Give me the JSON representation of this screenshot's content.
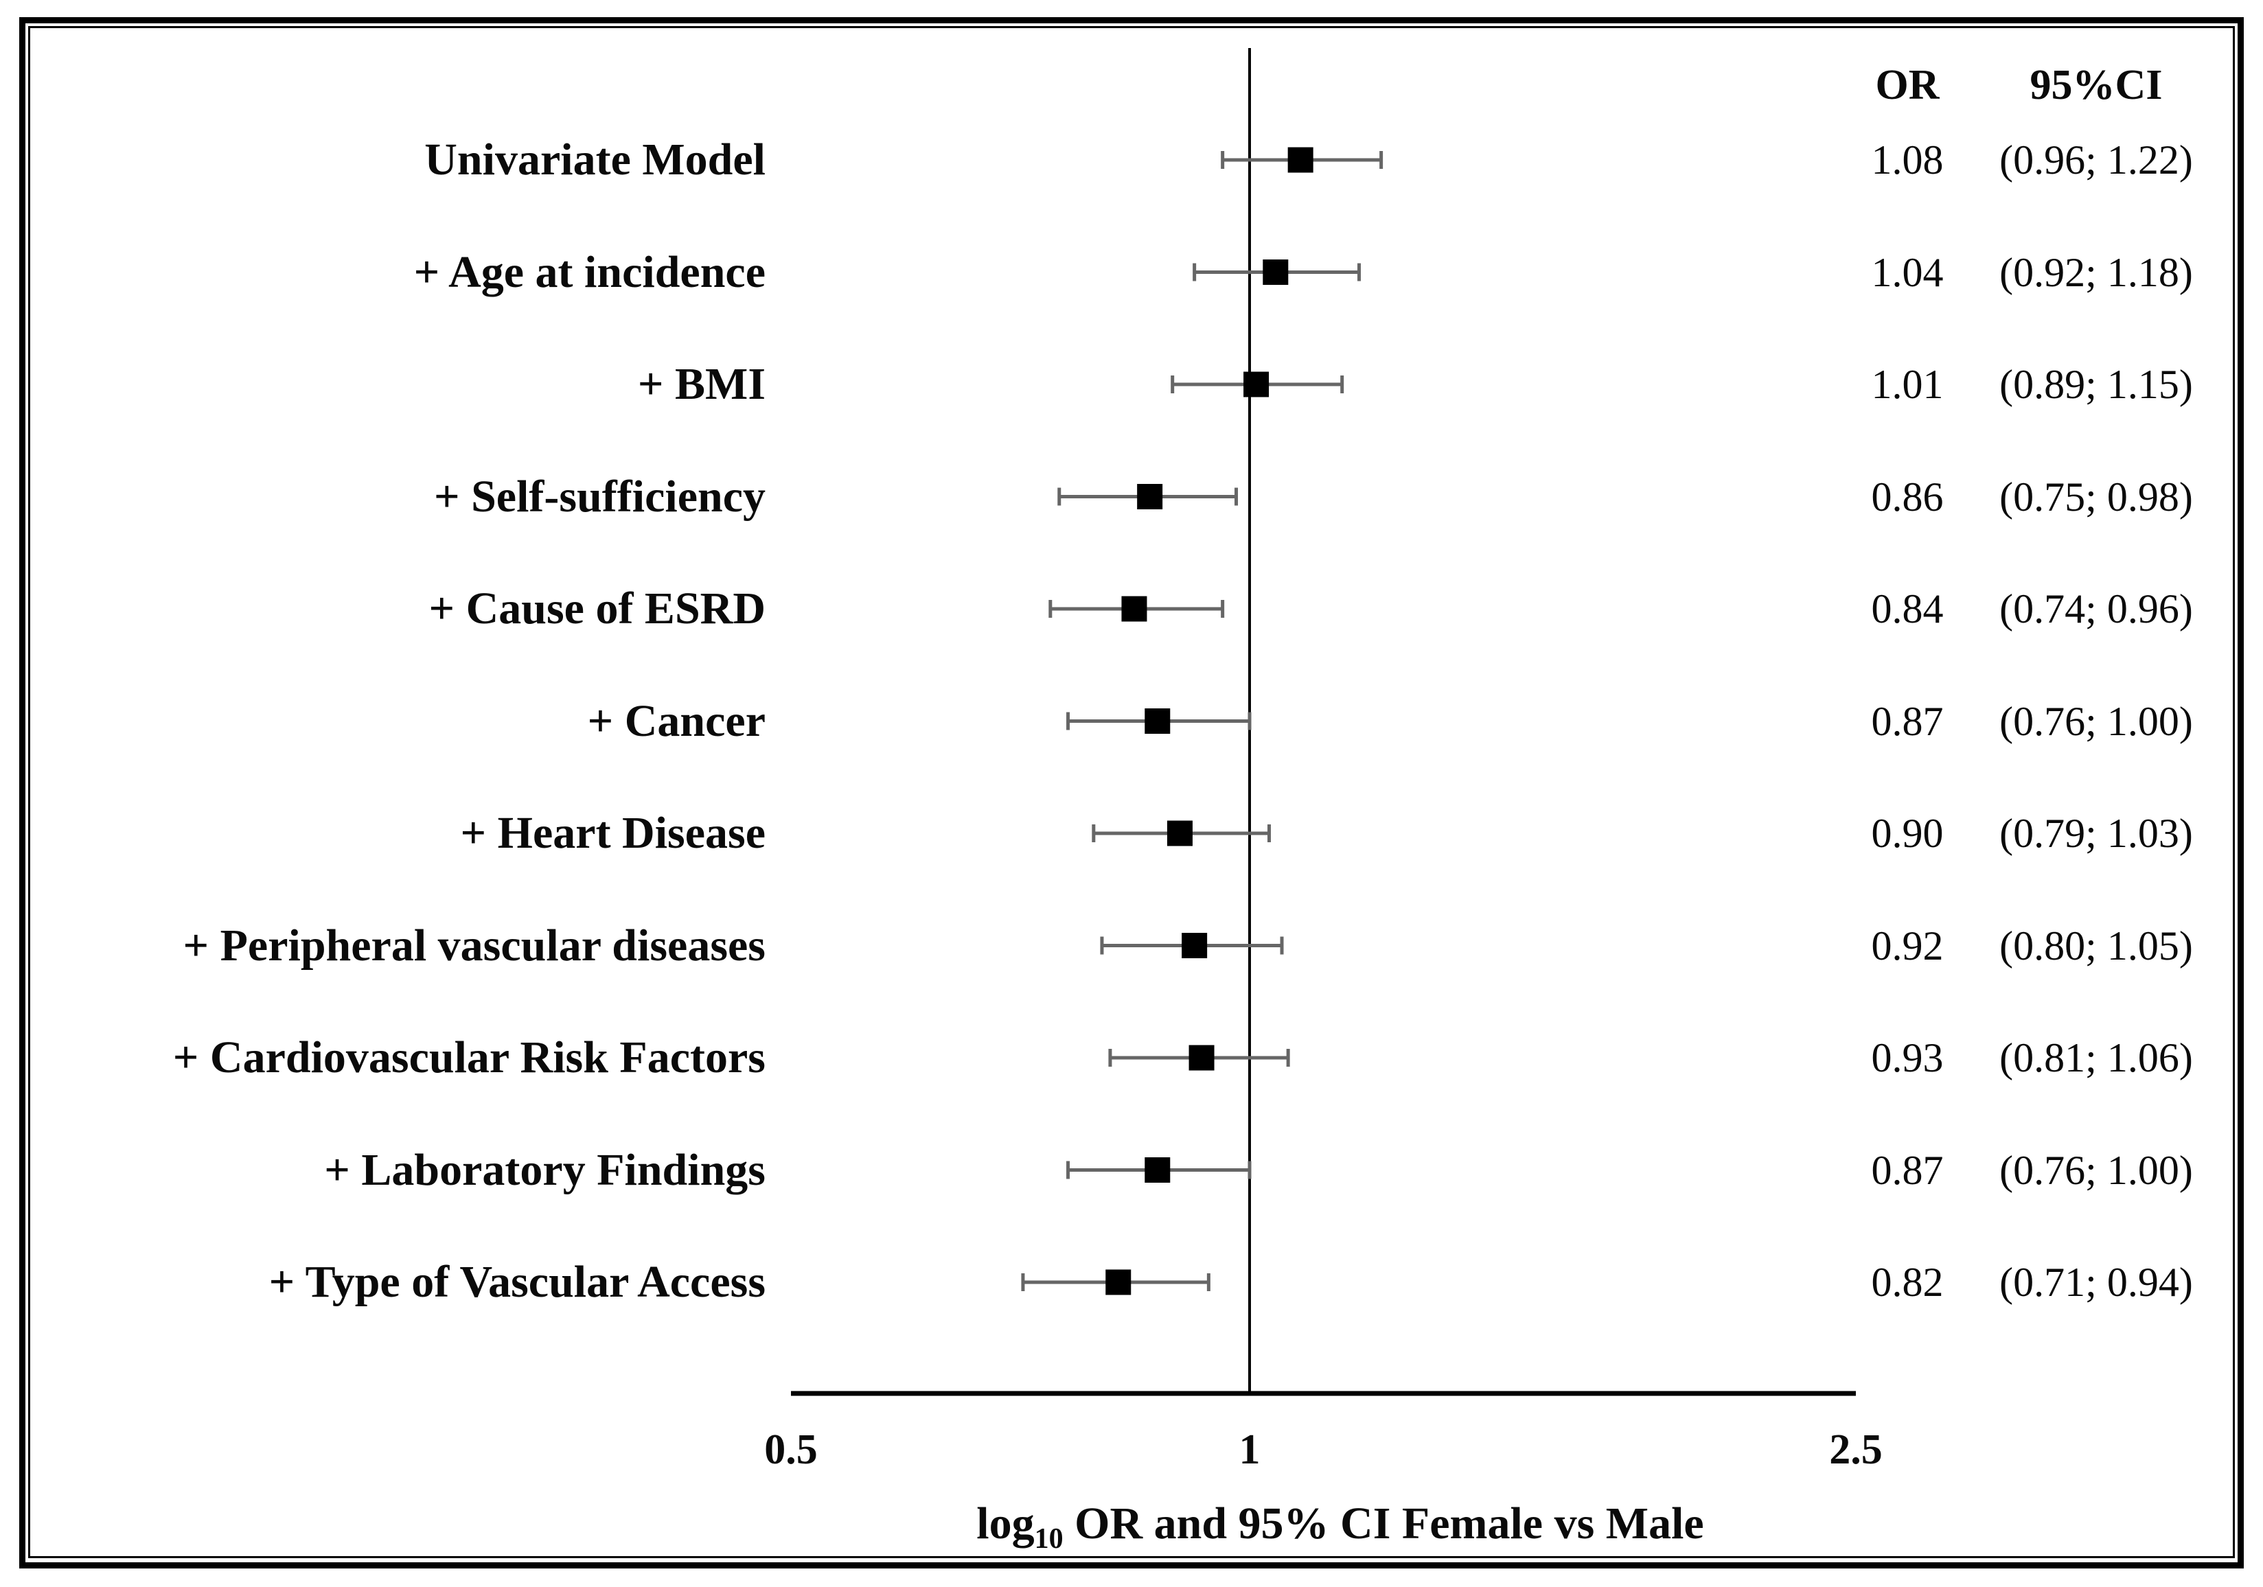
{
  "figure": {
    "columns": {
      "or": "OR",
      "ci": "95%CI"
    },
    "axis": {
      "scale": "log10",
      "label_prefix": "log",
      "label_sub": "10",
      "label_suffix": " OR and 95% CI Female vs Male",
      "reference_value": 1
    }
  },
  "chart_data": {
    "type": "forest",
    "orientation": "horizontal",
    "xscale": "log10",
    "xlim": [
      0.5,
      2.5
    ],
    "xticks": [
      {
        "value": 0.5,
        "label": "0.5"
      },
      {
        "value": 1,
        "label": "1"
      },
      {
        "value": 2.5,
        "label": "2.5"
      }
    ],
    "reference_line": 1,
    "xlabel": "log10 OR and 95% CI Female vs Male",
    "value_columns": [
      "OR",
      "95%CI"
    ],
    "rows": [
      {
        "label": "Univariate Model",
        "or": 1.08,
        "ci_low": 0.96,
        "ci_high": 1.22,
        "or_text": "1.08",
        "ci_text": "(0.96; 1.22)"
      },
      {
        "label": "+ Age at incidence",
        "or": 1.04,
        "ci_low": 0.92,
        "ci_high": 1.18,
        "or_text": "1.04",
        "ci_text": "(0.92; 1.18)"
      },
      {
        "label": "+ BMI",
        "or": 1.01,
        "ci_low": 0.89,
        "ci_high": 1.15,
        "or_text": "1.01",
        "ci_text": "(0.89; 1.15)"
      },
      {
        "label": "+ Self-sufficiency",
        "or": 0.86,
        "ci_low": 0.75,
        "ci_high": 0.98,
        "or_text": "0.86",
        "ci_text": "(0.75; 0.98)"
      },
      {
        "label": "+ Cause of ESRD",
        "or": 0.84,
        "ci_low": 0.74,
        "ci_high": 0.96,
        "or_text": "0.84",
        "ci_text": "(0.74; 0.96)"
      },
      {
        "label": "+ Cancer",
        "or": 0.87,
        "ci_low": 0.76,
        "ci_high": 1.0,
        "or_text": "0.87",
        "ci_text": "(0.76; 1.00)"
      },
      {
        "label": "+ Heart Disease",
        "or": 0.9,
        "ci_low": 0.79,
        "ci_high": 1.03,
        "or_text": "0.90",
        "ci_text": "(0.79; 1.03)"
      },
      {
        "label": "+ Peripheral vascular diseases",
        "or": 0.92,
        "ci_low": 0.8,
        "ci_high": 1.05,
        "or_text": "0.92",
        "ci_text": "(0.80; 1.05)"
      },
      {
        "label": "+ Cardiovascular Risk Factors",
        "or": 0.93,
        "ci_low": 0.81,
        "ci_high": 1.06,
        "or_text": "0.93",
        "ci_text": "(0.81; 1.06)"
      },
      {
        "label": "+ Laboratory Findings",
        "or": 0.87,
        "ci_low": 0.76,
        "ci_high": 1.0,
        "or_text": "0.87",
        "ci_text": "(0.76; 1.00)"
      },
      {
        "label": "+ Type of Vascular Access",
        "or": 0.82,
        "ci_low": 0.71,
        "ci_high": 0.94,
        "or_text": "0.82",
        "ci_text": "(0.71; 0.94)"
      }
    ]
  },
  "colors": {
    "marker": "#000000",
    "error_bar": "#666666",
    "reference_line": "#000000",
    "axis_line": "#000000",
    "text": "#0a0a0a",
    "frame": "#000000",
    "background": "#ffffff"
  }
}
